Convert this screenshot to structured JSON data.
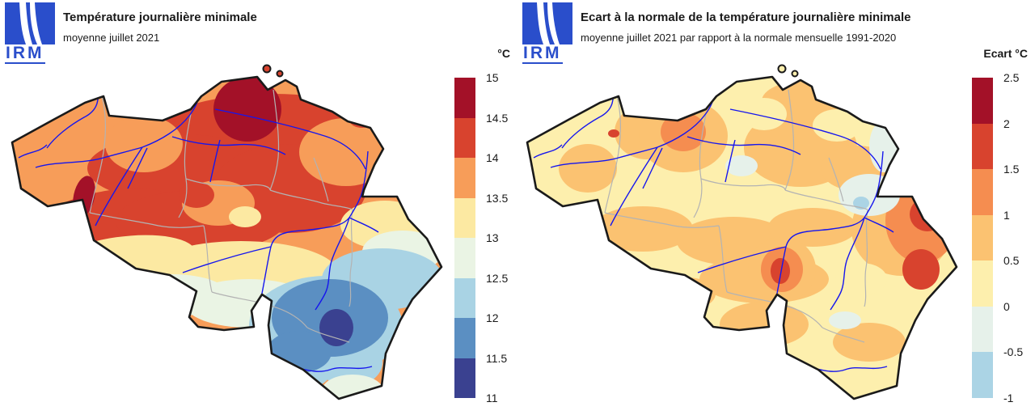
{
  "brand": {
    "name": "IRM",
    "color": "#2a4ecb"
  },
  "map_style": {
    "region": "Belgique",
    "border_color": "#1a1a1a",
    "river_color": "#1616ee",
    "province_border_color": "#b3b3b3",
    "background": "#ffffff"
  },
  "panels": [
    {
      "id": "temperature",
      "title": "Température journalière minimale",
      "subtitle": "moyenne juillet 2021",
      "legend": {
        "unit": "°C",
        "ticks": [
          "15",
          "14.5",
          "14",
          "13.5",
          "13",
          "12.5",
          "12",
          "11.5",
          "11"
        ],
        "colors": [
          "#a31128",
          "#d8432e",
          "#f79d59",
          "#fce9a2",
          "#eaf4e4",
          "#a9d3e4",
          "#5b8fc2",
          "#3a4190"
        ]
      }
    },
    {
      "id": "anomaly",
      "title": "Ecart à la normale de la température journalière minimale",
      "subtitle": "moyenne juillet 2021 par rapport à la normale mensuelle 1991-2020",
      "legend": {
        "unit": "Ecart °C",
        "ticks": [
          "2.5",
          "2",
          "1.5",
          "1",
          "0.5",
          "0",
          "-0.5",
          "-1"
        ],
        "colors": [
          "#a31128",
          "#d8432e",
          "#f58d50",
          "#fbc271",
          "#fdefad",
          "#e6f1ea",
          "#abd4e5"
        ]
      }
    }
  ],
  "chart_data": [
    {
      "type": "heatmap",
      "subtype": "choropleth_contour_map",
      "region": "Belgium",
      "title": "Température journalière minimale",
      "subtitle": "moyenne juillet 2021",
      "legend_title": "°C",
      "legend_position": "right",
      "scale_tick_values": [
        15,
        14.5,
        14,
        13.5,
        13,
        12.5,
        12,
        11.5,
        11
      ],
      "bin_colors_top_to_bottom": [
        "#a31128",
        "#d8432e",
        "#f79d59",
        "#fce9a2",
        "#eaf4e4",
        "#a9d3e4",
        "#5b8fc2",
        "#3a4190"
      ],
      "value_range": [
        11,
        15
      ],
      "pattern_summary": "warmest (14.5-15 °C) in the north around Antwerp/Kempen and a small spot in western Hainaut; 14-14.5 °C band across central and northern Belgium; 13.5-14 °C over Flanders; cooler 11-13 °C over the Ardennes with a minimum (11-11.5 °C) in the southeast high plateau"
    },
    {
      "type": "heatmap",
      "subtype": "choropleth_contour_map",
      "region": "Belgium",
      "title": "Ecart à la normale de la température journalière minimale",
      "subtitle": "moyenne juillet 2021 par rapport à la normale mensuelle 1991-2020",
      "legend_title": "Ecart °C",
      "legend_position": "right",
      "scale_tick_values": [
        2.5,
        2,
        1.5,
        1,
        0.5,
        0,
        -0.5,
        -1
      ],
      "bin_colors_top_to_bottom": [
        "#a31128",
        "#d8432e",
        "#f58d50",
        "#fbc271",
        "#fdefad",
        "#e6f1ea",
        "#abd4e5"
      ],
      "value_range": [
        -1,
        2.5
      ],
      "pattern_summary": "mostly +0 to +1 °C above normal; strongest positive anomalies (+1.5 to +2 °C) in the far east (Hautes Fagnes) and a local spot near Charleroi; small patches slightly below normal (0 to -0.5 °C) in the centre-east"
    }
  ]
}
